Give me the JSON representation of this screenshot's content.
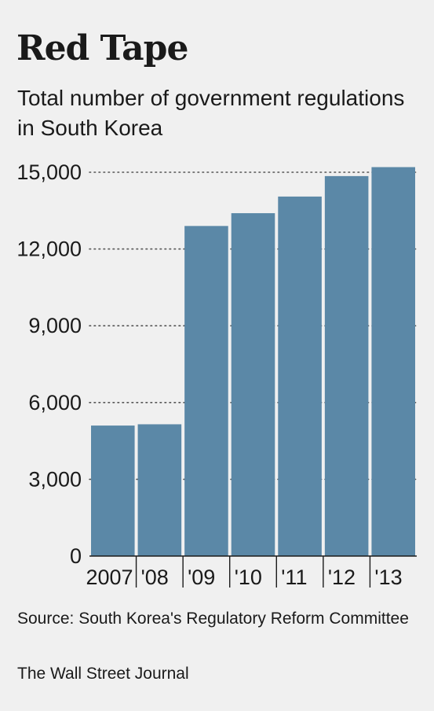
{
  "header": {
    "title": "Red Tape",
    "subtitle": "Total number of government regulations in South Korea"
  },
  "footer": {
    "source": "Source: South Korea's Regulatory Reform Committee",
    "credit": "The Wall Street Journal"
  },
  "colors": {
    "bar": "#5b88a7",
    "background": "#f0f0f0",
    "text": "#1a1a1a",
    "gridline": "#555555"
  },
  "chart_data": {
    "type": "bar",
    "title": "Red Tape",
    "subtitle": "Total number of government regulations in South Korea",
    "xlabel": "",
    "ylabel": "",
    "categories": [
      "2007",
      "'08",
      "'09",
      "'10",
      "'11",
      "'12",
      "'13"
    ],
    "values": [
      5100,
      5150,
      12900,
      13400,
      14050,
      14850,
      15200
    ],
    "ylim": [
      0,
      15000
    ],
    "yticks": [
      0,
      3000,
      6000,
      9000,
      12000,
      15000
    ],
    "ytick_labels": [
      "0",
      "3,000",
      "6,000",
      "9,000",
      "12,000",
      "15,000"
    ],
    "grid": "dotted horizontal",
    "legend": "none"
  }
}
